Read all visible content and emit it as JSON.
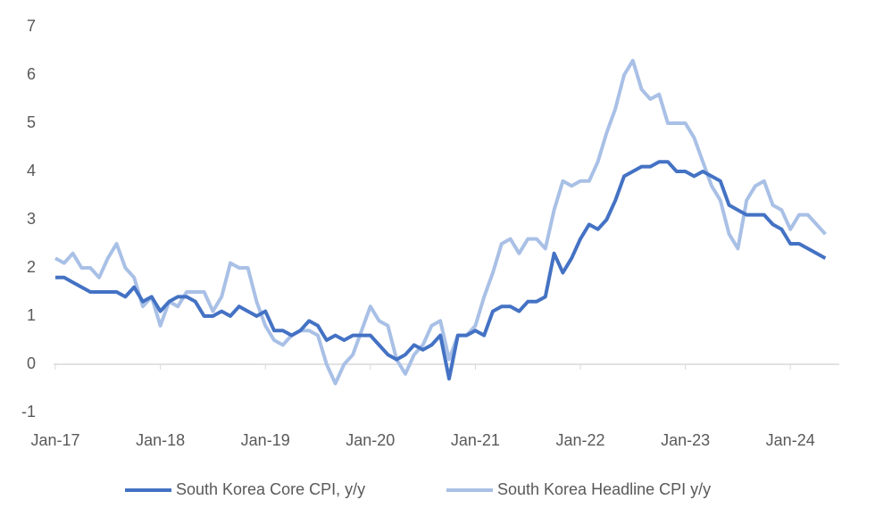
{
  "chart_data": {
    "type": "line",
    "categories": [
      "Jan-17",
      null,
      null,
      null,
      null,
      null,
      null,
      null,
      null,
      null,
      null,
      null,
      "Jan-18",
      null,
      null,
      null,
      null,
      null,
      null,
      null,
      null,
      null,
      null,
      null,
      "Jan-19",
      null,
      null,
      null,
      null,
      null,
      null,
      null,
      null,
      null,
      null,
      null,
      "Jan-20",
      null,
      null,
      null,
      null,
      null,
      null,
      null,
      null,
      null,
      null,
      null,
      "Jan-21",
      null,
      null,
      null,
      null,
      null,
      null,
      null,
      null,
      null,
      null,
      null,
      "Jan-22",
      null,
      null,
      null,
      null,
      null,
      null,
      null,
      null,
      null,
      null,
      null,
      "Jan-23",
      null,
      null,
      null,
      null,
      null,
      null,
      null,
      null,
      null,
      null,
      null,
      "Jan-24",
      null,
      null,
      null,
      null
    ],
    "series": [
      {
        "name": "South Korea Core CPI, y/y",
        "color": "#4472c4",
        "values": [
          1.8,
          1.8,
          1.7,
          1.6,
          1.5,
          1.5,
          1.5,
          1.5,
          1.4,
          1.6,
          1.3,
          1.4,
          1.1,
          1.3,
          1.4,
          1.4,
          1.3,
          1.0,
          1.0,
          1.1,
          1.0,
          1.2,
          1.1,
          1.0,
          1.1,
          0.7,
          0.7,
          0.6,
          0.7,
          0.9,
          0.8,
          0.5,
          0.6,
          0.5,
          0.6,
          0.6,
          0.6,
          0.4,
          0.2,
          0.1,
          0.2,
          0.4,
          0.3,
          0.4,
          0.6,
          -0.3,
          0.6,
          0.6,
          0.7,
          0.6,
          1.1,
          1.2,
          1.2,
          1.1,
          1.3,
          1.3,
          1.4,
          2.3,
          1.9,
          2.2,
          2.6,
          2.9,
          2.8,
          3.0,
          3.4,
          3.9,
          4.0,
          4.1,
          4.1,
          4.2,
          4.2,
          4.0,
          4.0,
          3.9,
          4.0,
          3.9,
          3.8,
          3.3,
          3.2,
          3.1,
          3.1,
          3.1,
          2.9,
          2.8,
          2.5,
          2.5,
          2.4,
          2.3,
          2.2
        ]
      },
      {
        "name": "South Korea Headline CPI y/y",
        "color": "#a9c0e6",
        "values": [
          2.2,
          2.1,
          2.3,
          2.0,
          2.0,
          1.8,
          2.2,
          2.5,
          2.0,
          1.8,
          1.2,
          1.4,
          0.8,
          1.3,
          1.2,
          1.5,
          1.5,
          1.5,
          1.1,
          1.4,
          2.1,
          2.0,
          2.0,
          1.3,
          0.8,
          0.5,
          0.4,
          0.6,
          0.7,
          0.7,
          0.6,
          0.0,
          -0.4,
          0.0,
          0.2,
          0.7,
          1.2,
          0.9,
          0.8,
          0.1,
          -0.2,
          0.2,
          0.4,
          0.8,
          0.9,
          0.1,
          0.6,
          0.6,
          0.8,
          1.4,
          1.9,
          2.5,
          2.6,
          2.3,
          2.6,
          2.6,
          2.4,
          3.2,
          3.8,
          3.7,
          3.8,
          3.8,
          4.2,
          4.8,
          5.3,
          6.0,
          6.3,
          5.7,
          5.5,
          5.6,
          5.0,
          5.0,
          5.0,
          4.7,
          4.2,
          3.7,
          3.4,
          2.7,
          2.4,
          3.4,
          3.7,
          3.8,
          3.3,
          3.2,
          2.8,
          3.1,
          3.1,
          2.9,
          2.7
        ]
      }
    ],
    "ylim": [
      -1,
      7
    ],
    "yticks": [
      -1,
      0,
      1,
      2,
      3,
      4,
      5,
      6,
      7
    ],
    "grid": false
  }
}
